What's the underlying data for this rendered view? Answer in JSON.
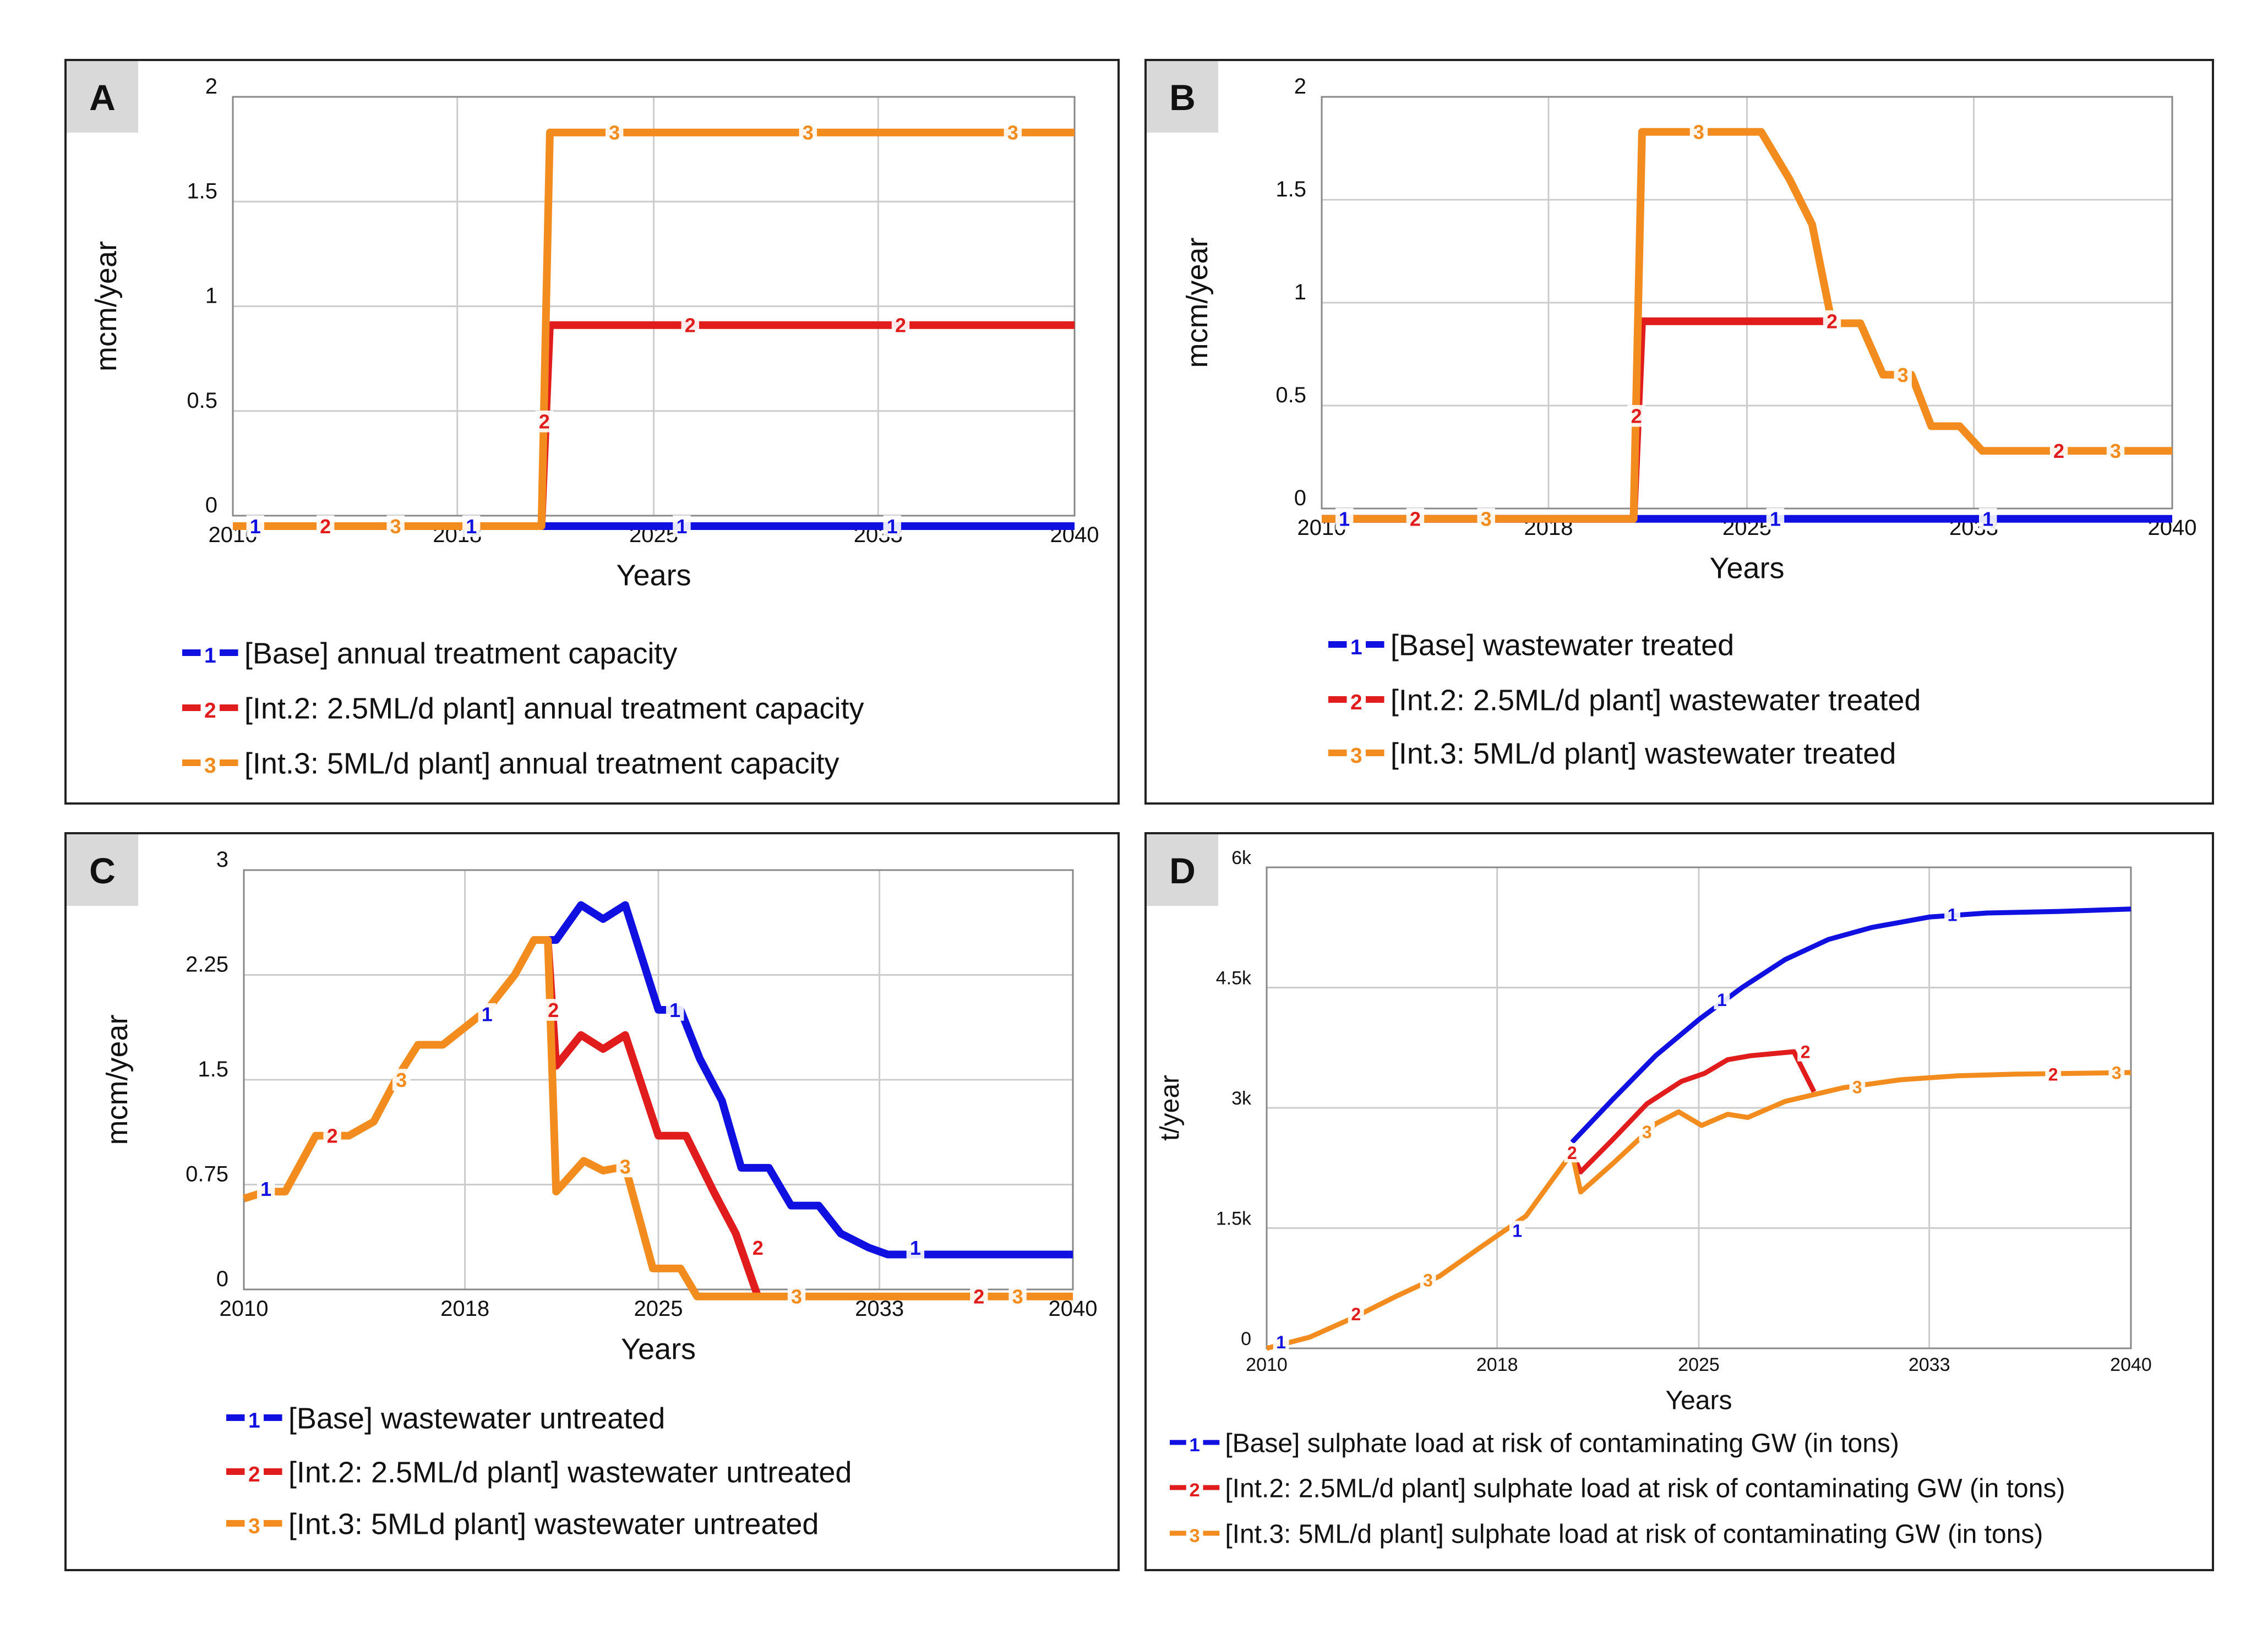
{
  "colors": {
    "base": "#1010e0",
    "int2": "#e01c1c",
    "int3": "#f28c1e",
    "grid": "#cccccc",
    "badge": "#d9d9d9"
  },
  "chart_data": [
    {
      "id": "A",
      "type": "line",
      "panel_label": "A",
      "xlabel": "Years",
      "ylabel": "mcm/year",
      "xlim": [
        2010,
        2040
      ],
      "ylim": [
        0,
        2
      ],
      "xticks": [
        2010,
        2018,
        2025,
        2033,
        2040
      ],
      "yticks": [
        {
          "v": 0,
          "t": "0"
        },
        {
          "v": 0.5,
          "t": "0.5"
        },
        {
          "v": 1,
          "t": "1"
        },
        {
          "v": 1.5,
          "t": "1.5"
        },
        {
          "v": 2,
          "t": "2"
        }
      ],
      "series": [
        {
          "key": "base",
          "num": "1",
          "legend": "[Base] annual treatment capacity",
          "points": [
            [
              2010,
              -0.05
            ],
            [
              2040,
              -0.05
            ]
          ],
          "markers": [
            [
              2010.8,
              -0.05
            ],
            [
              2018.5,
              -0.05
            ],
            [
              2026,
              -0.05
            ],
            [
              2033.5,
              -0.05
            ]
          ]
        },
        {
          "key": "int2",
          "num": "2",
          "legend": "[Int.2: 2.5ML/d plant] annual treatment capacity",
          "points": [
            [
              2010,
              -0.05
            ],
            [
              2021,
              -0.05
            ],
            [
              2021.3,
              0.91
            ],
            [
              2040,
              0.91
            ]
          ],
          "markers": [
            [
              2013.3,
              -0.05
            ],
            [
              2021.1,
              0.45
            ],
            [
              2026.3,
              0.91
            ],
            [
              2033.8,
              0.91
            ]
          ]
        },
        {
          "key": "int3",
          "num": "3",
          "legend": "[Int.3: 5ML/d plant] annual treatment capacity",
          "points": [
            [
              2010,
              -0.05
            ],
            [
              2021,
              -0.05
            ],
            [
              2021.3,
              1.83
            ],
            [
              2040,
              1.83
            ]
          ],
          "markers": [
            [
              2015.8,
              -0.05
            ],
            [
              2023.6,
              1.83
            ],
            [
              2030.5,
              1.83
            ],
            [
              2037.8,
              1.83
            ]
          ]
        }
      ]
    },
    {
      "id": "B",
      "type": "line",
      "panel_label": "B",
      "xlabel": "Years",
      "ylabel": "mcm/year",
      "xlim": [
        2010,
        2040
      ],
      "ylim": [
        0,
        2
      ],
      "xticks": [
        2010,
        2018,
        2025,
        2033,
        2040
      ],
      "yticks": [
        {
          "v": 0,
          "t": "0"
        },
        {
          "v": 0.5,
          "t": "0.5"
        },
        {
          "v": 1,
          "t": "1"
        },
        {
          "v": 1.5,
          "t": "1.5"
        },
        {
          "v": 2,
          "t": "2"
        }
      ],
      "series": [
        {
          "key": "base",
          "num": "1",
          "legend": "[Base] wastewater treated",
          "points": [
            [
              2010,
              -0.05
            ],
            [
              2040,
              -0.05
            ]
          ],
          "markers": [
            [
              2010.8,
              -0.05
            ],
            [
              2026,
              -0.05
            ],
            [
              2033.5,
              -0.05
            ]
          ]
        },
        {
          "key": "int2",
          "num": "2",
          "legend": "[Int.2: 2.5ML/d plant] wastewater treated",
          "points": [
            [
              2010,
              -0.05
            ],
            [
              2021,
              -0.05
            ],
            [
              2021.3,
              0.91
            ],
            [
              2028,
              0.91
            ]
          ],
          "markers": [
            [
              2013.3,
              -0.05
            ],
            [
              2021.1,
              0.45
            ],
            [
              2028,
              0.91
            ],
            [
              2036,
              0.28
            ]
          ]
        },
        {
          "key": "int3",
          "num": "3",
          "legend": "[Int.3: 5ML/d plant] wastewater treated",
          "points": [
            [
              2010,
              -0.05
            ],
            [
              2021,
              -0.05
            ],
            [
              2021.3,
              1.83
            ],
            [
              2025.5,
              1.83
            ],
            [
              2026.5,
              1.6
            ],
            [
              2027.3,
              1.38
            ],
            [
              2028,
              0.9
            ],
            [
              2029,
              0.9
            ],
            [
              2029.8,
              0.65
            ],
            [
              2030.8,
              0.65
            ],
            [
              2031.5,
              0.4
            ],
            [
              2032.5,
              0.4
            ],
            [
              2033.3,
              0.28
            ],
            [
              2040,
              0.28
            ]
          ],
          "markers": [
            [
              2015.8,
              -0.05
            ],
            [
              2023.3,
              1.83
            ],
            [
              2030.5,
              0.65
            ],
            [
              2038,
              0.28
            ]
          ]
        }
      ]
    },
    {
      "id": "C",
      "type": "line",
      "panel_label": "C",
      "xlabel": "Years",
      "ylabel": "mcm/year",
      "xlim": [
        2010,
        2040
      ],
      "ylim": [
        0,
        3
      ],
      "xticks": [
        2010,
        2018,
        2025,
        2033,
        2040
      ],
      "yticks": [
        {
          "v": 0,
          "t": "0"
        },
        {
          "v": 0.75,
          "t": "0.75"
        },
        {
          "v": 1.5,
          "t": "1.5"
        },
        {
          "v": 2.25,
          "t": "2.25"
        },
        {
          "v": 3,
          "t": "3"
        }
      ],
      "series": [
        {
          "key": "base",
          "num": "1",
          "legend": "[Base] wastewater untreated",
          "points": [
            [
              2020.5,
              2.5
            ],
            [
              2021.3,
              2.5
            ],
            [
              2022.2,
              2.75
            ],
            [
              2023,
              2.65
            ],
            [
              2023.8,
              2.75
            ],
            [
              2025,
              2.0
            ],
            [
              2025.8,
              2.0
            ],
            [
              2026.5,
              1.65
            ],
            [
              2027.3,
              1.35
            ],
            [
              2028,
              0.87
            ],
            [
              2029,
              0.87
            ],
            [
              2029.8,
              0.6
            ],
            [
              2030.8,
              0.6
            ],
            [
              2031.6,
              0.4
            ],
            [
              2032.6,
              0.3
            ],
            [
              2033.3,
              0.25
            ],
            [
              2040,
              0.25
            ]
          ],
          "markers": [
            [
              2010.8,
              0.72
            ],
            [
              2018.8,
              1.97
            ],
            [
              2025.6,
              2.0
            ],
            [
              2034.3,
              0.3
            ]
          ]
        },
        {
          "key": "int2",
          "num": "2",
          "legend": "[Int.2: 2.5ML/d plant] wastewater untreated",
          "points": [
            [
              2021,
              2.5
            ],
            [
              2021.3,
              1.6
            ],
            [
              2022.2,
              1.82
            ],
            [
              2023,
              1.72
            ],
            [
              2023.8,
              1.82
            ],
            [
              2025,
              1.1
            ],
            [
              2026,
              1.1
            ],
            [
              2027,
              0.7
            ],
            [
              2027.8,
              0.4
            ],
            [
              2028.6,
              -0.05
            ]
          ],
          "markers": [
            [
              2013.2,
              1.1
            ],
            [
              2021.2,
              2.0
            ],
            [
              2028.6,
              0.3
            ],
            [
              2036.6,
              -0.05
            ]
          ]
        },
        {
          "key": "int3",
          "num": "3",
          "legend": "[Int.3: 5MLd plant] wastewater untreated",
          "points": [
            [
              2010,
              0.65
            ],
            [
              2010.8,
              0.7
            ],
            [
              2011.5,
              0.7
            ],
            [
              2012.6,
              1.1
            ],
            [
              2013.8,
              1.1
            ],
            [
              2014.7,
              1.2
            ],
            [
              2015.5,
              1.5
            ],
            [
              2016.3,
              1.75
            ],
            [
              2017.2,
              1.75
            ],
            [
              2018.8,
              2.0
            ],
            [
              2019.8,
              2.25
            ],
            [
              2020.5,
              2.5
            ],
            [
              2021,
              2.5
            ],
            [
              2021.3,
              0.7
            ],
            [
              2022.3,
              0.92
            ],
            [
              2023,
              0.85
            ],
            [
              2023.8,
              0.88
            ],
            [
              2024.8,
              0.15
            ],
            [
              2025.8,
              0.15
            ],
            [
              2026.4,
              -0.05
            ],
            [
              2040,
              -0.05
            ]
          ],
          "markers": [
            [
              2015.7,
              1.5
            ],
            [
              2023.8,
              0.88
            ],
            [
              2030,
              -0.05
            ],
            [
              2038,
              -0.05
            ]
          ]
        }
      ]
    },
    {
      "id": "D",
      "type": "line",
      "panel_label": "D",
      "xlabel": "Years",
      "ylabel": "t/year",
      "xlim": [
        2010,
        2040
      ],
      "ylim": [
        0,
        6000
      ],
      "xticks": [
        2010,
        2018,
        2025,
        2033,
        2040
      ],
      "yticks": [
        {
          "v": 0,
          "t": "0"
        },
        {
          "v": 1500,
          "t": "1.5k"
        },
        {
          "v": 3000,
          "t": "3k"
        },
        {
          "v": 4500,
          "t": "4.5k"
        },
        {
          "v": 6000,
          "t": "6k"
        }
      ],
      "series": [
        {
          "key": "base",
          "num": "1",
          "legend": "[Base] sulphate load at risk of contaminating GW (in tons)",
          "points": [
            [
              2020.6,
              2570
            ],
            [
              2022,
              3100
            ],
            [
              2023.5,
              3650
            ],
            [
              2025,
              4100
            ],
            [
              2026.5,
              4500
            ],
            [
              2028,
              4850
            ],
            [
              2029.5,
              5100
            ],
            [
              2031,
              5250
            ],
            [
              2033,
              5380
            ],
            [
              2035,
              5430
            ],
            [
              2037.5,
              5450
            ],
            [
              2040,
              5480
            ]
          ],
          "markers": [
            [
              2010.5,
              80
            ],
            [
              2018.7,
              1470
            ],
            [
              2025.8,
              4350
            ],
            [
              2033.8,
              5410
            ]
          ]
        },
        {
          "key": "int2",
          "num": "2",
          "legend": "[Int.2: 2.5ML/d plant] sulphate load at risk of contaminating GW (in tons)",
          "points": [
            [
              2020.6,
              2440
            ],
            [
              2020.9,
              2200
            ],
            [
              2022,
              2600
            ],
            [
              2023.2,
              3050
            ],
            [
              2024.4,
              3330
            ],
            [
              2025.2,
              3430
            ],
            [
              2026,
              3600
            ],
            [
              2026.8,
              3650
            ],
            [
              2028.3,
              3700
            ],
            [
              2029,
              3200
            ]
          ],
          "markers": [
            [
              2013.1,
              430
            ],
            [
              2020.6,
              2440
            ],
            [
              2028.7,
              3700
            ],
            [
              2037.3,
              3420
            ]
          ]
        },
        {
          "key": "int3",
          "num": "3",
          "legend": "[Int.3: 5ML/d plant] sulphate load at risk of contaminating GW (in tons)",
          "points": [
            [
              2010,
              0
            ],
            [
              2011.5,
              140
            ],
            [
              2013,
              380
            ],
            [
              2014.5,
              650
            ],
            [
              2016,
              900
            ],
            [
              2017.5,
              1280
            ],
            [
              2019,
              1650
            ],
            [
              2020.6,
              2440
            ],
            [
              2020.9,
              1950
            ],
            [
              2022,
              2300
            ],
            [
              2023.5,
              2800
            ],
            [
              2024.3,
              2950
            ],
            [
              2025.1,
              2780
            ],
            [
              2026,
              2920
            ],
            [
              2026.7,
              2880
            ],
            [
              2028,
              3080
            ],
            [
              2030,
              3250
            ],
            [
              2032,
              3350
            ],
            [
              2034,
              3400
            ],
            [
              2036,
              3420
            ],
            [
              2038,
              3430
            ],
            [
              2040,
              3440
            ]
          ],
          "markers": [
            [
              2015.6,
              850
            ],
            [
              2023.2,
              2700
            ],
            [
              2030.5,
              3260
            ],
            [
              2039.5,
              3440
            ]
          ]
        }
      ]
    }
  ]
}
